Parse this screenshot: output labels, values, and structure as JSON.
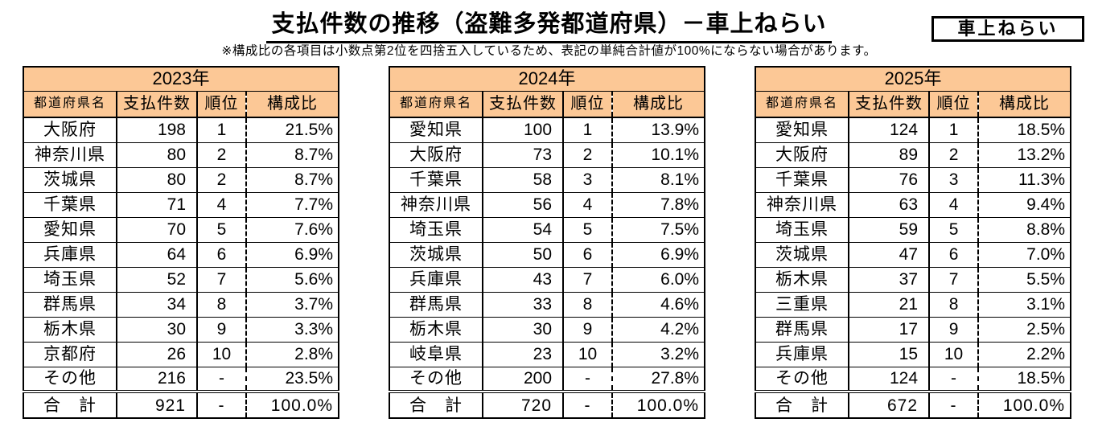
{
  "title": "支払件数の推移（盗難多発都道府県）－車上ねらい",
  "note": "※構成比の各項目は小数点第2位を四捨五入しているため、表記の単純合計値が100%にならない場合があります。",
  "tag_label": "車上ねらい",
  "colors": {
    "header_bg": "#FCC896",
    "border": "#000000"
  },
  "columns": [
    "都道府県名",
    "支払件数",
    "順位",
    "構成比"
  ],
  "tables": [
    {
      "year": "2023年",
      "rows": [
        [
          "大阪府",
          "198",
          "1",
          "21.5%"
        ],
        [
          "神奈川県",
          "80",
          "2",
          "8.7%"
        ],
        [
          "茨城県",
          "80",
          "2",
          "8.7%"
        ],
        [
          "千葉県",
          "71",
          "4",
          "7.7%"
        ],
        [
          "愛知県",
          "70",
          "5",
          "7.6%"
        ],
        [
          "兵庫県",
          "64",
          "6",
          "6.9%"
        ],
        [
          "埼玉県",
          "52",
          "7",
          "5.6%"
        ],
        [
          "群馬県",
          "34",
          "8",
          "3.7%"
        ],
        [
          "栃木県",
          "30",
          "9",
          "3.3%"
        ],
        [
          "京都府",
          "26",
          "10",
          "2.8%"
        ],
        [
          "その他",
          "216",
          "-",
          "23.5%"
        ]
      ],
      "total": [
        "合　計",
        "921",
        "-",
        "100.0%"
      ]
    },
    {
      "year": "2024年",
      "rows": [
        [
          "愛知県",
          "100",
          "1",
          "13.9%"
        ],
        [
          "大阪府",
          "73",
          "2",
          "10.1%"
        ],
        [
          "千葉県",
          "58",
          "3",
          "8.1%"
        ],
        [
          "神奈川県",
          "56",
          "4",
          "7.8%"
        ],
        [
          "埼玉県",
          "54",
          "5",
          "7.5%"
        ],
        [
          "茨城県",
          "50",
          "6",
          "6.9%"
        ],
        [
          "兵庫県",
          "43",
          "7",
          "6.0%"
        ],
        [
          "群馬県",
          "33",
          "8",
          "4.6%"
        ],
        [
          "栃木県",
          "30",
          "9",
          "4.2%"
        ],
        [
          "岐阜県",
          "23",
          "10",
          "3.2%"
        ],
        [
          "その他",
          "200",
          "-",
          "27.8%"
        ]
      ],
      "total": [
        "合　計",
        "720",
        "-",
        "100.0%"
      ]
    },
    {
      "year": "2025年",
      "rows": [
        [
          "愛知県",
          "124",
          "1",
          "18.5%"
        ],
        [
          "大阪府",
          "89",
          "2",
          "13.2%"
        ],
        [
          "千葉県",
          "76",
          "3",
          "11.3%"
        ],
        [
          "神奈川県",
          "63",
          "4",
          "9.4%"
        ],
        [
          "埼玉県",
          "59",
          "5",
          "8.8%"
        ],
        [
          "茨城県",
          "47",
          "6",
          "7.0%"
        ],
        [
          "栃木県",
          "37",
          "7",
          "5.5%"
        ],
        [
          "三重県",
          "21",
          "8",
          "3.1%"
        ],
        [
          "群馬県",
          "17",
          "9",
          "2.5%"
        ],
        [
          "兵庫県",
          "15",
          "10",
          "2.2%"
        ],
        [
          "その他",
          "124",
          "-",
          "18.5%"
        ]
      ],
      "total": [
        "合　計",
        "672",
        "-",
        "100.0%"
      ]
    }
  ]
}
